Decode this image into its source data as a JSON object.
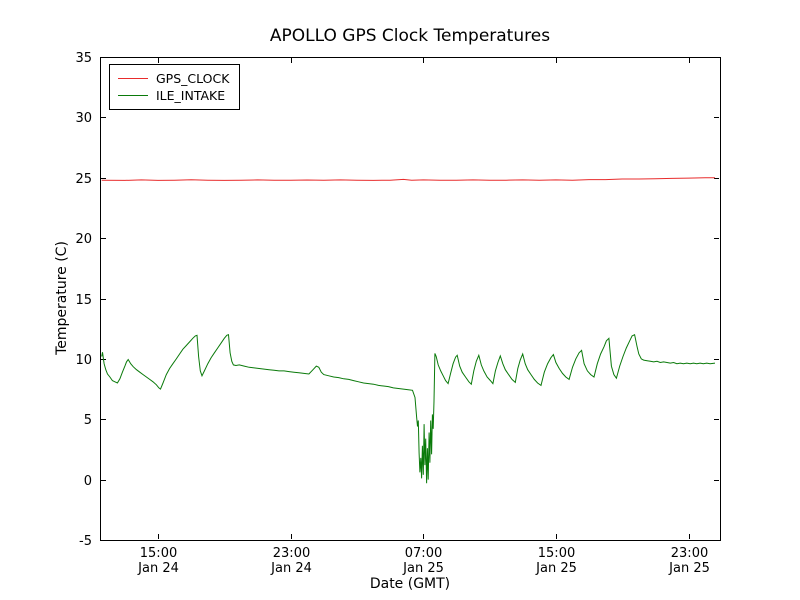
{
  "figure": {
    "title": "APOLLO GPS Clock Temperatures",
    "xlabel": "Date (GMT)",
    "ylabel": "Temperature (C)"
  },
  "chart_data": {
    "type": "line",
    "title": "APOLLO GPS Clock Temperatures",
    "xlabel": "Date (GMT)",
    "ylabel": "Temperature (C)",
    "x_unit": "hours since Jan 24 00:00 GMT",
    "xlim": [
      11.5,
      48.9
    ],
    "ylim": [
      -5,
      35
    ],
    "grid": false,
    "legend_position": "upper left",
    "yticks": [
      -5,
      0,
      5,
      10,
      15,
      20,
      25,
      30,
      35
    ],
    "xticks": [
      {
        "value": 15,
        "time": "15:00",
        "date": "Jan 24"
      },
      {
        "value": 23,
        "time": "23:00",
        "date": "Jan 24"
      },
      {
        "value": 31,
        "time": "07:00",
        "date": "Jan 25"
      },
      {
        "value": 39,
        "time": "15:00",
        "date": "Jan 25"
      },
      {
        "value": 47,
        "time": "23:00",
        "date": "Jan 25"
      }
    ],
    "series": [
      {
        "name": "GPS_CLOCK",
        "color": "#e82c2c",
        "points": [
          [
            11.6,
            24.8
          ],
          [
            13,
            24.78
          ],
          [
            14,
            24.82
          ],
          [
            15,
            24.78
          ],
          [
            16,
            24.8
          ],
          [
            17,
            24.83
          ],
          [
            18,
            24.8
          ],
          [
            19,
            24.78
          ],
          [
            20,
            24.8
          ],
          [
            21,
            24.82
          ],
          [
            22,
            24.8
          ],
          [
            23,
            24.79
          ],
          [
            24,
            24.81
          ],
          [
            25,
            24.8
          ],
          [
            26,
            24.82
          ],
          [
            27,
            24.8
          ],
          [
            28,
            24.78
          ],
          [
            29,
            24.8
          ],
          [
            29.8,
            24.86
          ],
          [
            30.3,
            24.8
          ],
          [
            31,
            24.82
          ],
          [
            32,
            24.8
          ],
          [
            33,
            24.8
          ],
          [
            34,
            24.82
          ],
          [
            35,
            24.8
          ],
          [
            36,
            24.8
          ],
          [
            37,
            24.82
          ],
          [
            38,
            24.8
          ],
          [
            39,
            24.82
          ],
          [
            40,
            24.8
          ],
          [
            41,
            24.85
          ],
          [
            42,
            24.85
          ],
          [
            43,
            24.9
          ],
          [
            44,
            24.9
          ],
          [
            45,
            24.92
          ],
          [
            46,
            24.95
          ],
          [
            47,
            24.97
          ],
          [
            48,
            25.0
          ],
          [
            48.6,
            25.0
          ]
        ]
      },
      {
        "name": "ILE_INTAKE",
        "color": "#0a7a0a",
        "points": [
          [
            11.6,
            10.2
          ],
          [
            11.65,
            10.55
          ],
          [
            11.75,
            9.6
          ],
          [
            11.85,
            9.1
          ],
          [
            11.95,
            8.75
          ],
          [
            12.1,
            8.5
          ],
          [
            12.25,
            8.2
          ],
          [
            12.4,
            8.1
          ],
          [
            12.55,
            8.0
          ],
          [
            12.7,
            8.35
          ],
          [
            12.85,
            8.9
          ],
          [
            13.0,
            9.4
          ],
          [
            13.1,
            9.75
          ],
          [
            13.2,
            9.95
          ],
          [
            13.35,
            9.6
          ],
          [
            13.5,
            9.35
          ],
          [
            13.7,
            9.1
          ],
          [
            13.9,
            8.9
          ],
          [
            14.1,
            8.7
          ],
          [
            14.3,
            8.5
          ],
          [
            14.5,
            8.3
          ],
          [
            14.7,
            8.1
          ],
          [
            14.9,
            7.85
          ],
          [
            15.05,
            7.6
          ],
          [
            15.15,
            7.5
          ],
          [
            15.3,
            8.0
          ],
          [
            15.5,
            8.7
          ],
          [
            15.7,
            9.2
          ],
          [
            15.9,
            9.6
          ],
          [
            16.1,
            10.0
          ],
          [
            16.3,
            10.4
          ],
          [
            16.5,
            10.8
          ],
          [
            16.7,
            11.1
          ],
          [
            16.9,
            11.4
          ],
          [
            17.1,
            11.7
          ],
          [
            17.25,
            11.9
          ],
          [
            17.35,
            11.95
          ],
          [
            17.45,
            10.2
          ],
          [
            17.55,
            9.0
          ],
          [
            17.65,
            8.6
          ],
          [
            17.8,
            9.0
          ],
          [
            18.0,
            9.6
          ],
          [
            18.2,
            10.1
          ],
          [
            18.4,
            10.5
          ],
          [
            18.6,
            10.9
          ],
          [
            18.8,
            11.3
          ],
          [
            19.0,
            11.7
          ],
          [
            19.15,
            11.95
          ],
          [
            19.25,
            12.0
          ],
          [
            19.35,
            10.5
          ],
          [
            19.45,
            9.8
          ],
          [
            19.55,
            9.5
          ],
          [
            19.7,
            9.45
          ],
          [
            19.9,
            9.5
          ],
          [
            20.2,
            9.4
          ],
          [
            20.5,
            9.3
          ],
          [
            20.8,
            9.25
          ],
          [
            21.1,
            9.2
          ],
          [
            21.4,
            9.15
          ],
          [
            21.7,
            9.1
          ],
          [
            22.0,
            9.05
          ],
          [
            22.3,
            9.0
          ],
          [
            22.6,
            9.0
          ],
          [
            22.9,
            8.95
          ],
          [
            23.2,
            8.9
          ],
          [
            23.5,
            8.85
          ],
          [
            23.8,
            8.8
          ],
          [
            24.1,
            8.75
          ],
          [
            24.35,
            9.1
          ],
          [
            24.55,
            9.4
          ],
          [
            24.7,
            9.3
          ],
          [
            24.85,
            8.9
          ],
          [
            25.0,
            8.7
          ],
          [
            25.3,
            8.6
          ],
          [
            25.6,
            8.5
          ],
          [
            25.9,
            8.45
          ],
          [
            26.2,
            8.35
          ],
          [
            26.5,
            8.3
          ],
          [
            26.8,
            8.2
          ],
          [
            27.1,
            8.1
          ],
          [
            27.4,
            8.0
          ],
          [
            27.7,
            7.95
          ],
          [
            28.0,
            7.9
          ],
          [
            28.3,
            7.8
          ],
          [
            28.6,
            7.75
          ],
          [
            28.9,
            7.7
          ],
          [
            29.2,
            7.6
          ],
          [
            29.5,
            7.55
          ],
          [
            29.8,
            7.5
          ],
          [
            30.1,
            7.45
          ],
          [
            30.35,
            7.4
          ],
          [
            30.5,
            6.8
          ],
          [
            30.6,
            5.2
          ],
          [
            30.65,
            4.4
          ],
          [
            30.7,
            4.9
          ],
          [
            30.75,
            2.2
          ],
          [
            30.8,
            0.6
          ],
          [
            30.85,
            1.8
          ],
          [
            30.9,
            0.1
          ],
          [
            30.95,
            2.8
          ],
          [
            31.0,
            0.4
          ],
          [
            31.05,
            4.6
          ],
          [
            31.1,
            1.2
          ],
          [
            31.15,
            3.4
          ],
          [
            31.2,
            -0.3
          ],
          [
            31.25,
            2.6
          ],
          [
            31.3,
            0.0
          ],
          [
            31.35,
            3.9
          ],
          [
            31.4,
            1.4
          ],
          [
            31.45,
            4.9
          ],
          [
            31.5,
            2.1
          ],
          [
            31.55,
            5.4
          ],
          [
            31.6,
            4.2
          ],
          [
            31.65,
            6.5
          ],
          [
            31.7,
            10.45
          ],
          [
            31.78,
            10.2
          ],
          [
            31.9,
            9.5
          ],
          [
            32.05,
            9.0
          ],
          [
            32.2,
            8.6
          ],
          [
            32.35,
            8.2
          ],
          [
            32.5,
            7.95
          ],
          [
            32.65,
            8.8
          ],
          [
            32.8,
            9.6
          ],
          [
            32.95,
            10.15
          ],
          [
            33.05,
            10.3
          ],
          [
            33.2,
            9.4
          ],
          [
            33.35,
            8.9
          ],
          [
            33.55,
            8.5
          ],
          [
            33.75,
            8.1
          ],
          [
            33.9,
            7.9
          ],
          [
            34.05,
            9.0
          ],
          [
            34.2,
            9.8
          ],
          [
            34.35,
            10.3
          ],
          [
            34.5,
            9.5
          ],
          [
            34.65,
            9.0
          ],
          [
            34.85,
            8.5
          ],
          [
            35.05,
            8.2
          ],
          [
            35.2,
            7.95
          ],
          [
            35.35,
            9.0
          ],
          [
            35.5,
            9.7
          ],
          [
            35.65,
            10.25
          ],
          [
            35.8,
            9.6
          ],
          [
            35.95,
            9.1
          ],
          [
            36.15,
            8.7
          ],
          [
            36.35,
            8.3
          ],
          [
            36.55,
            8.05
          ],
          [
            36.7,
            9.2
          ],
          [
            36.85,
            9.9
          ],
          [
            37.0,
            10.4
          ],
          [
            37.15,
            9.6
          ],
          [
            37.3,
            9.1
          ],
          [
            37.5,
            8.7
          ],
          [
            37.7,
            8.3
          ],
          [
            37.9,
            8.0
          ],
          [
            38.1,
            7.8
          ],
          [
            38.3,
            8.9
          ],
          [
            38.5,
            9.6
          ],
          [
            38.7,
            10.1
          ],
          [
            38.85,
            10.35
          ],
          [
            39.0,
            9.7
          ],
          [
            39.2,
            9.2
          ],
          [
            39.4,
            8.8
          ],
          [
            39.6,
            8.5
          ],
          [
            39.8,
            8.3
          ],
          [
            40.0,
            9.3
          ],
          [
            40.2,
            10.0
          ],
          [
            40.4,
            10.5
          ],
          [
            40.55,
            10.7
          ],
          [
            40.7,
            9.6
          ],
          [
            40.9,
            9.0
          ],
          [
            41.1,
            8.7
          ],
          [
            41.3,
            8.5
          ],
          [
            41.5,
            9.6
          ],
          [
            41.7,
            10.4
          ],
          [
            41.9,
            11.0
          ],
          [
            42.05,
            11.5
          ],
          [
            42.2,
            11.7
          ],
          [
            42.35,
            9.4
          ],
          [
            42.5,
            8.7
          ],
          [
            42.65,
            8.4
          ],
          [
            42.85,
            9.4
          ],
          [
            43.05,
            10.2
          ],
          [
            43.25,
            10.9
          ],
          [
            43.45,
            11.5
          ],
          [
            43.6,
            11.9
          ],
          [
            43.75,
            12.0
          ],
          [
            43.9,
            11.0
          ],
          [
            44.0,
            10.4
          ],
          [
            44.15,
            10.0
          ],
          [
            44.3,
            9.9
          ],
          [
            44.5,
            9.85
          ],
          [
            44.7,
            9.8
          ],
          [
            44.9,
            9.75
          ],
          [
            45.1,
            9.8
          ],
          [
            45.3,
            9.7
          ],
          [
            45.5,
            9.75
          ],
          [
            45.7,
            9.7
          ],
          [
            45.9,
            9.65
          ],
          [
            46.1,
            9.7
          ],
          [
            46.3,
            9.6
          ],
          [
            46.5,
            9.65
          ],
          [
            46.7,
            9.6
          ],
          [
            46.9,
            9.65
          ],
          [
            47.1,
            9.6
          ],
          [
            47.3,
            9.65
          ],
          [
            47.5,
            9.6
          ],
          [
            47.7,
            9.65
          ],
          [
            47.9,
            9.6
          ],
          [
            48.1,
            9.65
          ],
          [
            48.3,
            9.6
          ],
          [
            48.6,
            9.65
          ]
        ]
      }
    ]
  }
}
